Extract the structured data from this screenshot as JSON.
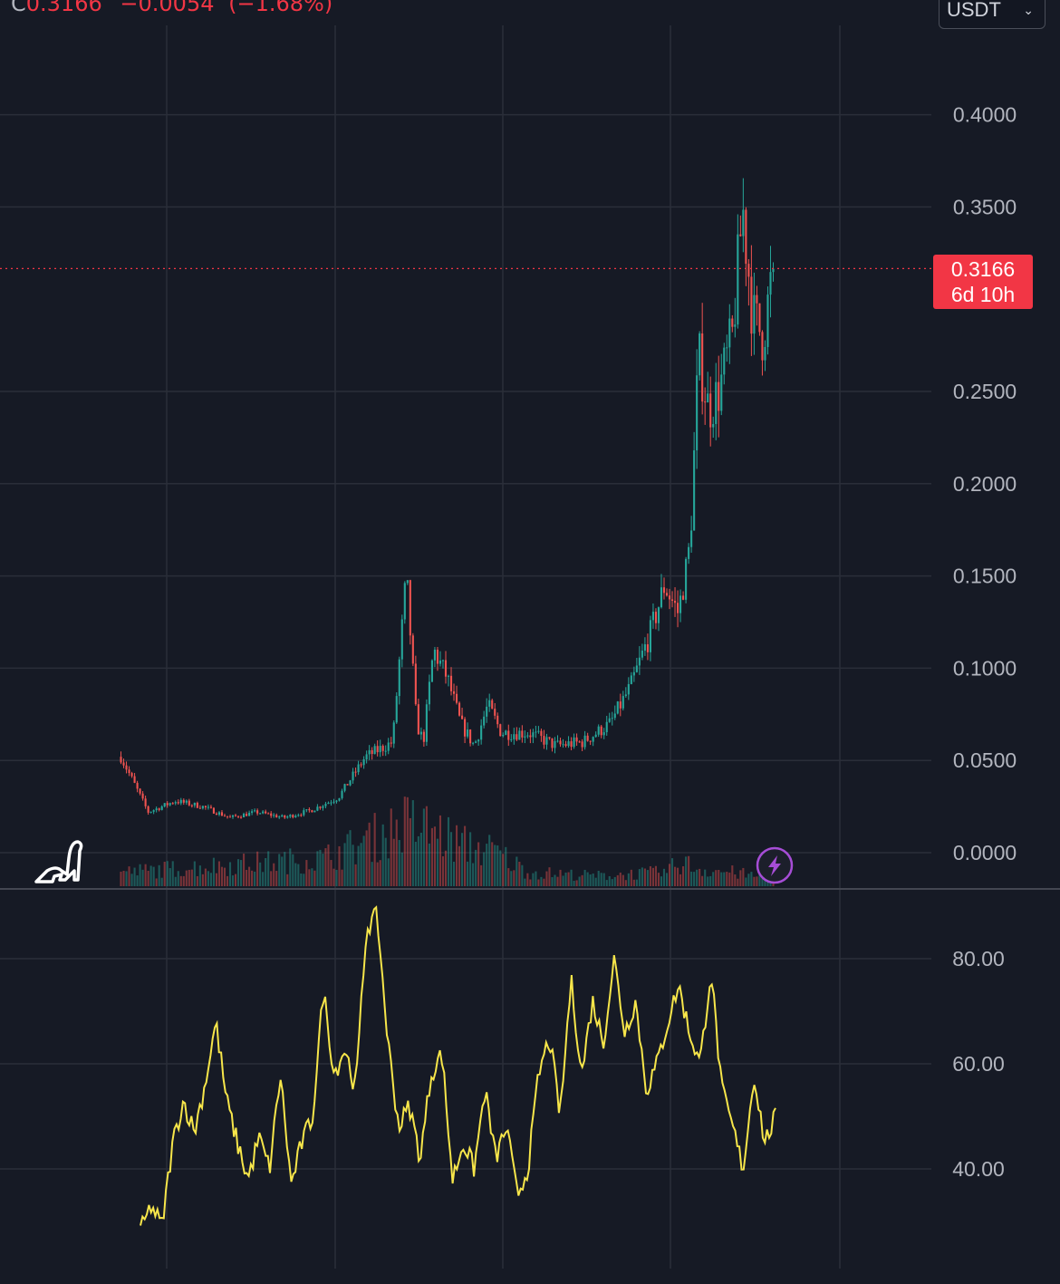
{
  "header": {
    "close_label": "C",
    "close_value": "0.3166",
    "change": "−0.0054",
    "change_pct": "(−1.68%)"
  },
  "currency": {
    "label": "USDT"
  },
  "last_price": {
    "value": "0.3166",
    "countdown": "6d 10h"
  },
  "colors": {
    "background": "#161a25",
    "up": "#26a69a",
    "down": "#ef5350",
    "indicator": "#f7e64a",
    "axis_text": "#b2b5be",
    "badge": "#f23645"
  },
  "icons": {
    "watermark": "dinosaur-logo-icon",
    "flash": "lightning-bolt-icon"
  },
  "chart_data": [
    {
      "type": "line",
      "style": "candlestick",
      "xlabel": "",
      "ylabel": "",
      "y_ticks": [
        "0.0000",
        "0.0500",
        "0.1000",
        "0.1500",
        "0.2000",
        "0.2500",
        "0.3500",
        "0.4000"
      ],
      "ylim": [
        -0.0195,
        0.4575
      ],
      "grid": true,
      "approx_close_profile": {
        "note_x": "sample index 0 to 180 across visible range",
        "x": [
          0,
          8,
          16,
          24,
          32,
          40,
          48,
          56,
          64,
          72,
          80,
          84,
          87,
          89,
          92,
          96,
          100,
          104,
          108,
          112,
          120,
          128,
          136,
          144,
          150,
          156,
          160,
          164,
          167,
          168,
          170,
          173,
          176,
          180,
          183,
          186,
          189,
          192
        ],
        "close": [
          0.052,
          0.022,
          0.028,
          0.025,
          0.019,
          0.022,
          0.019,
          0.023,
          0.03,
          0.052,
          0.06,
          0.15,
          0.07,
          0.06,
          0.11,
          0.095,
          0.07,
          0.058,
          0.08,
          0.065,
          0.065,
          0.058,
          0.06,
          0.07,
          0.09,
          0.12,
          0.145,
          0.13,
          0.16,
          0.185,
          0.27,
          0.24,
          0.25,
          0.28,
          0.35,
          0.29,
          0.28,
          0.3166
        ]
      },
      "volume_profile": {
        "x": [
          0,
          30,
          60,
          70,
          84,
          92,
          100,
          110,
          120,
          140,
          160,
          165,
          170,
          180,
          192
        ],
        "volume": [
          0.2,
          0.3,
          0.4,
          0.6,
          0.9,
          0.8,
          0.6,
          0.5,
          0.2,
          0.15,
          0.2,
          0.35,
          0.25,
          0.2,
          0.1
        ]
      }
    },
    {
      "type": "line",
      "series": [
        {
          "values": [
            28,
            33,
            29,
            45,
            53,
            47,
            56,
            68,
            53,
            45,
            38,
            46,
            40,
            58,
            37,
            45,
            50,
            74,
            58,
            63,
            55,
            86,
            88,
            64,
            48,
            52,
            42,
            58,
            62,
            38,
            45,
            40,
            55,
            42,
            48,
            35,
            40,
            58,
            65,
            50,
            76,
            58,
            72,
            64,
            80,
            66,
            72,
            55,
            60,
            68,
            75,
            66,
            60,
            78,
            55,
            48,
            40,
            58,
            45,
            50
          ]
        }
      ],
      "y_ticks": [
        "40.00",
        "60.00",
        "80.00"
      ],
      "ylim": [
        20,
        95
      ],
      "grid": true
    }
  ]
}
